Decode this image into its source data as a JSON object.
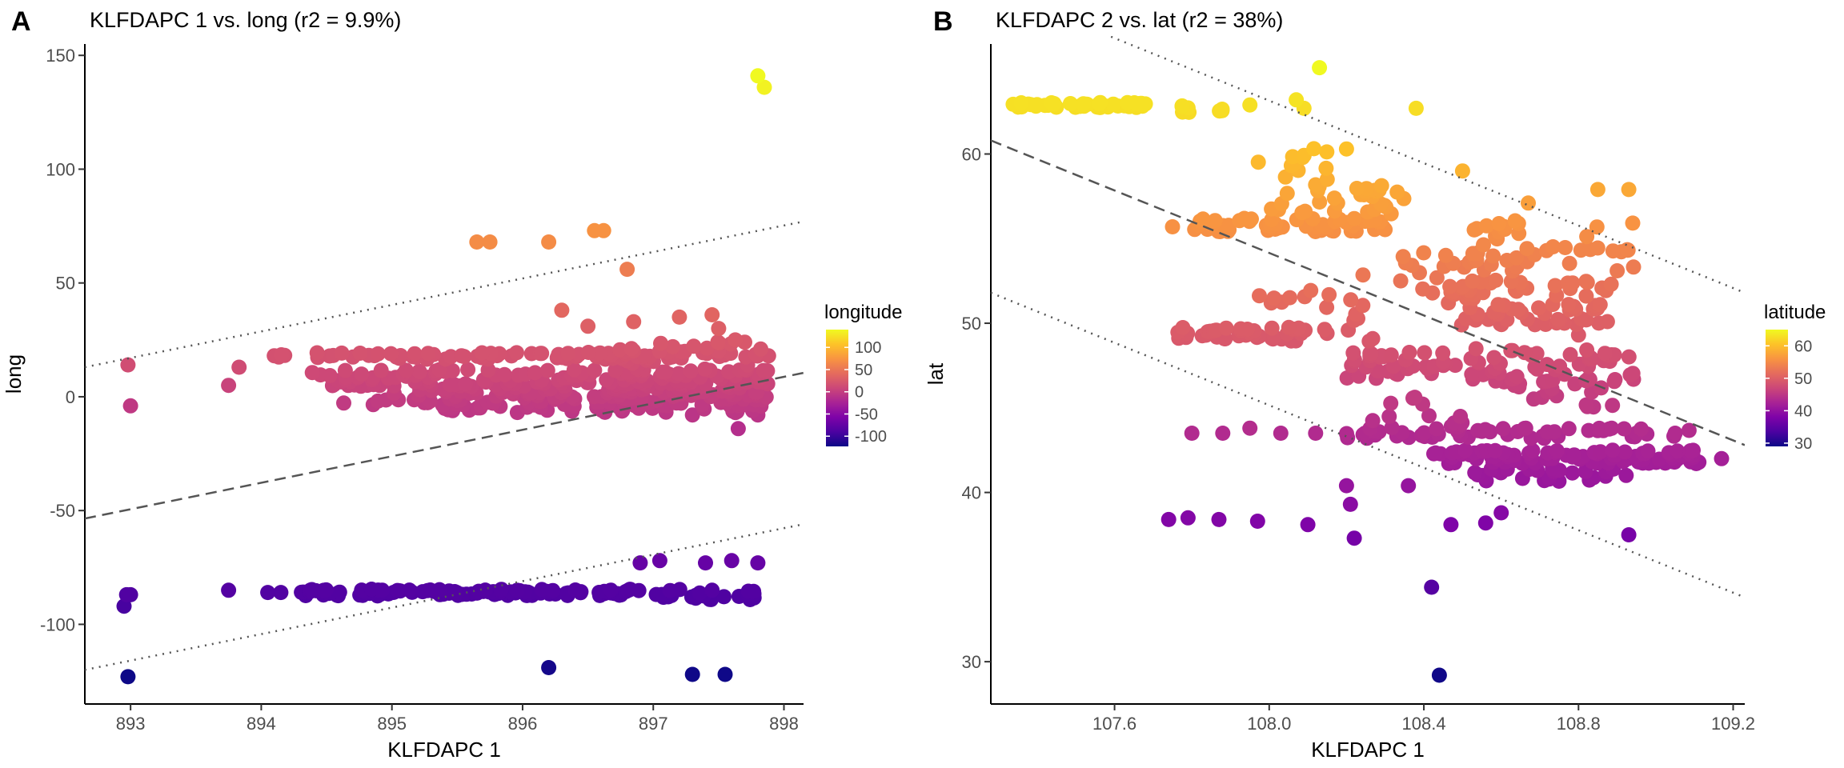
{
  "panels": [
    {
      "letter": "A",
      "title": "KLFDAPC 1 vs. long (r2 = 9.9%)"
    },
    {
      "letter": "B",
      "title": "KLFDAPC 2 vs. lat (r2 = 38%)"
    }
  ],
  "chart_data": [
    {
      "type": "scatter",
      "title": "KLFDAPC 1 vs. long (r2 = 9.9%)",
      "xlabel": "KLFDAPC 1",
      "ylabel": "long",
      "xlim": [
        892.65,
        898.15
      ],
      "ylim": [
        -135,
        155
      ],
      "xticks": [
        893,
        894,
        895,
        896,
        897,
        898
      ],
      "yticks": [
        -100,
        -50,
        0,
        50,
        100,
        150
      ],
      "legend": {
        "title": "longitude",
        "placement": "right",
        "ticks": [
          100,
          50,
          0,
          -50,
          -100
        ],
        "range": [
          -123,
          140
        ]
      },
      "colormap": "plasma",
      "grid": false,
      "regression": {
        "x": [
          892.65,
          898.15
        ],
        "fit": [
          -53.5,
          10.5
        ],
        "upper": [
          13,
          77
        ],
        "lower": [
          -120,
          -56
        ]
      },
      "points": [
        [
          892.98,
          14
        ],
        [
          893.0,
          -4
        ],
        [
          892.95,
          -92
        ],
        [
          892.97,
          -87
        ],
        [
          893.0,
          -87
        ],
        [
          892.98,
          -123
        ],
        [
          893.75,
          5
        ],
        [
          893.83,
          13
        ],
        [
          894.1,
          18
        ],
        [
          893.75,
          -85
        ],
        [
          894.05,
          -86
        ],
        [
          894.15,
          -86
        ],
        [
          895.65,
          68
        ],
        [
          895.75,
          68
        ],
        [
          896.2,
          68
        ],
        [
          896.55,
          73
        ],
        [
          896.62,
          73
        ],
        [
          896.8,
          56
        ],
        [
          896.3,
          38
        ],
        [
          896.5,
          31
        ],
        [
          896.85,
          33
        ],
        [
          897.2,
          35
        ],
        [
          897.45,
          36
        ],
        [
          896.2,
          -119
        ],
        [
          897.3,
          -122
        ],
        [
          897.55,
          -122
        ],
        [
          897.8,
          141
        ],
        [
          897.85,
          136
        ],
        [
          896.9,
          -73
        ],
        [
          897.05,
          -72
        ],
        [
          897.4,
          -73
        ],
        [
          897.6,
          -72
        ],
        [
          897.8,
          -73
        ],
        [
          897.15,
          22
        ],
        [
          897.5,
          30
        ],
        [
          897.7,
          24
        ],
        [
          897.65,
          -14
        ],
        [
          897.8,
          -8
        ],
        [
          897.5,
          20
        ],
        [
          897.7,
          12
        ],
        [
          897.3,
          -8
        ]
      ],
      "bands": [
        {
          "y": 18,
          "x_range": [
            894.1,
            897.9
          ],
          "count": 80,
          "spread": 1.5
        },
        {
          "y": 10,
          "x_range": [
            894.3,
            897.9
          ],
          "count": 60,
          "spread": 2
        },
        {
          "y": 6,
          "x_range": [
            894.5,
            897.9
          ],
          "count": 70,
          "spread": 1.5
        },
        {
          "y": 2,
          "x_range": [
            895.0,
            897.9
          ],
          "count": 70,
          "spread": 2
        },
        {
          "y": -2,
          "x_range": [
            894.6,
            897.9
          ],
          "count": 60,
          "spread": 2
        },
        {
          "y": -5,
          "x_range": [
            895.4,
            897.9
          ],
          "count": 40,
          "spread": 2
        },
        {
          "y": 14,
          "x_range": [
            896.7,
            897.9
          ],
          "count": 60,
          "spread": 12
        },
        {
          "y": -86,
          "x_range": [
            894.3,
            896.9
          ],
          "count": 110,
          "spread": 1.5
        },
        {
          "y": -87,
          "x_range": [
            897.0,
            897.8
          ],
          "count": 25,
          "spread": 2.5
        }
      ]
    },
    {
      "type": "scatter",
      "title": "KLFDAPC 2 vs. lat (r2 = 38%)",
      "xlabel": "KLFDAPC 1",
      "ylabel": "lat",
      "xlim": [
        107.28,
        109.23
      ],
      "ylim": [
        27.5,
        66.5
      ],
      "xticks": [
        107.6,
        108.0,
        108.4,
        108.8,
        109.2
      ],
      "yticks": [
        30,
        40,
        50,
        60
      ],
      "legend": {
        "title": "latitude",
        "placement": "right",
        "ticks": [
          60,
          50,
          40,
          30
        ],
        "range": [
          29,
          65
        ]
      },
      "colormap": "plasma",
      "grid": false,
      "regression": {
        "x": [
          107.28,
          109.23
        ],
        "fit": [
          60.8,
          42.8
        ],
        "upper": [
          69.8,
          51.8
        ],
        "lower": [
          51.8,
          33.8
        ]
      },
      "points": [
        [
          108.13,
          65.1
        ],
        [
          107.95,
          62.9
        ],
        [
          108.07,
          63.2
        ],
        [
          108.09,
          62.7
        ],
        [
          108.38,
          62.7
        ],
        [
          108.5,
          59
        ],
        [
          108.2,
          60.3
        ],
        [
          108.15,
          58.5
        ],
        [
          108.42,
          34.4
        ],
        [
          108.44,
          29.2
        ],
        [
          108.93,
          37.5
        ],
        [
          108.85,
          57.9
        ],
        [
          108.93,
          57.9
        ],
        [
          107.75,
          55.7
        ],
        [
          107.74,
          38.4
        ],
        [
          107.79,
          38.5
        ],
        [
          107.87,
          38.4
        ],
        [
          107.97,
          38.3
        ],
        [
          108.1,
          38.1
        ],
        [
          108.22,
          37.3
        ],
        [
          107.8,
          43.5
        ],
        [
          107.88,
          43.5
        ],
        [
          107.95,
          43.8
        ],
        [
          108.03,
          43.5
        ],
        [
          108.12,
          43.5
        ],
        [
          108.21,
          39.3
        ],
        [
          108.2,
          40.4
        ],
        [
          108.36,
          40.4
        ],
        [
          108.47,
          38.1
        ],
        [
          108.56,
          38.2
        ],
        [
          108.6,
          38.8
        ],
        [
          109.17,
          42.0
        ],
        [
          109.05,
          43.5
        ],
        [
          108.95,
          43.5
        ],
        [
          108.8,
          49.3
        ],
        [
          108.9,
          53.1
        ],
        [
          108.67,
          57.1
        ]
      ],
      "bands": [
        {
          "y": 62.9,
          "x_range": [
            107.33,
            107.7
          ],
          "count": 40,
          "spread": 0.15
        },
        {
          "y": 62.7,
          "x_range": [
            107.77,
            107.9
          ],
          "count": 8,
          "spread": 0.25
        },
        {
          "y": 55.8,
          "x_range": [
            107.8,
            108.3
          ],
          "count": 60,
          "spread": 0.4
        },
        {
          "y": 57.2,
          "x_range": [
            108.0,
            108.35
          ],
          "count": 35,
          "spread": 1.2
        },
        {
          "y": 59.5,
          "x_range": [
            107.95,
            108.15
          ],
          "count": 12,
          "spread": 1.0
        },
        {
          "y": 54.8,
          "x_range": [
            108.45,
            108.95
          ],
          "count": 40,
          "spread": 1.5
        },
        {
          "y": 51.2,
          "x_range": [
            108.45,
            108.9
          ],
          "count": 70,
          "spread": 1.3
        },
        {
          "y": 53.0,
          "x_range": [
            108.3,
            108.65
          ],
          "count": 25,
          "spread": 1.3
        },
        {
          "y": 49.4,
          "x_range": [
            107.76,
            108.1
          ],
          "count": 40,
          "spread": 0.35
        },
        {
          "y": 47.5,
          "x_range": [
            108.2,
            108.95
          ],
          "count": 80,
          "spread": 1.0
        },
        {
          "y": 51.0,
          "x_range": [
            107.97,
            108.3
          ],
          "count": 25,
          "spread": 2.5
        },
        {
          "y": 46.0,
          "x_range": [
            108.6,
            108.9
          ],
          "count": 25,
          "spread": 1.0
        },
        {
          "y": 43.5,
          "x_range": [
            108.2,
            109.1
          ],
          "count": 50,
          "spread": 0.3
        },
        {
          "y": 42.1,
          "x_range": [
            108.42,
            109.12
          ],
          "count": 90,
          "spread": 0.4
        },
        {
          "y": 41.0,
          "x_range": [
            108.5,
            108.95
          ],
          "count": 30,
          "spread": 0.4
        },
        {
          "y": 44.5,
          "x_range": [
            108.25,
            108.5
          ],
          "count": 15,
          "spread": 1.2
        }
      ]
    }
  ]
}
